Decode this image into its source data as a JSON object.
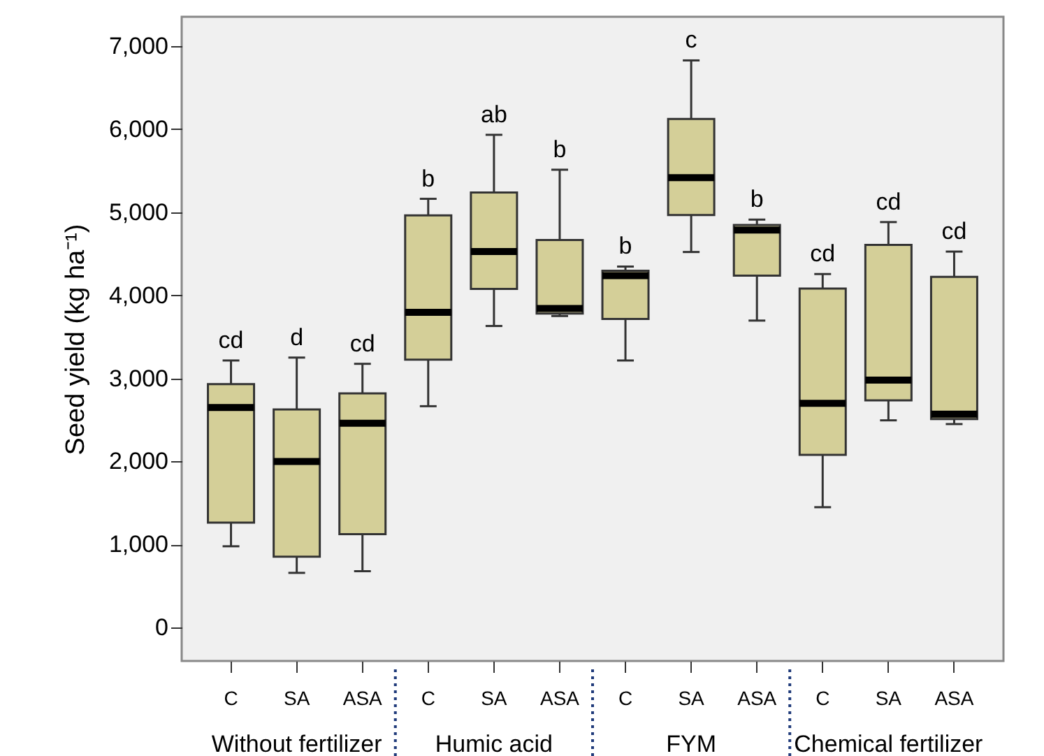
{
  "chart_data": {
    "type": "box",
    "ylabel": "Seed yield (kg ha⁻¹)",
    "categories": [
      "C",
      "SA",
      "ASA",
      "C",
      "SA",
      "ASA",
      "C",
      "SA",
      "ASA",
      "C",
      "SA",
      "ASA"
    ],
    "annotations": [
      "Without fertilizer",
      "Humic acid",
      "FYM",
      "Chemical fertilizer"
    ],
    "series": [
      {
        "color": "#d4cf98",
        "boxes": [
          {
            "low": 980,
            "q1": 1265,
            "median": 2650,
            "q3": 2930,
            "high": 3215
          },
          {
            "low": 660,
            "q1": 855,
            "median": 2000,
            "q3": 2625,
            "high": 3250
          },
          {
            "low": 680,
            "q1": 1125,
            "median": 2460,
            "q3": 2820,
            "high": 3175
          },
          {
            "low": 2665,
            "q1": 3225,
            "median": 3795,
            "q3": 4960,
            "high": 5160
          },
          {
            "low": 3630,
            "q1": 4075,
            "median": 4525,
            "q3": 5235,
            "high": 5930
          },
          {
            "low": 3750,
            "q1": 3780,
            "median": 3840,
            "q3": 4665,
            "high": 5510
          },
          {
            "low": 3215,
            "q1": 3715,
            "median": 4235,
            "q3": 4295,
            "high": 4345
          },
          {
            "low": 4520,
            "q1": 4965,
            "median": 5415,
            "q3": 6120,
            "high": 6825
          },
          {
            "low": 3695,
            "q1": 4235,
            "median": 4785,
            "q3": 4845,
            "high": 4910
          },
          {
            "low": 1450,
            "q1": 2080,
            "median": 2700,
            "q3": 4080,
            "high": 4255
          },
          {
            "low": 2495,
            "q1": 2735,
            "median": 2980,
            "q3": 4605,
            "high": 4880
          },
          {
            "low": 2450,
            "q1": 2510,
            "median": 2570,
            "q3": 4220,
            "high": 4525
          }
        ]
      }
    ],
    "value_labels": [
      "cd",
      "d",
      "cd",
      "b",
      "ab",
      "b",
      "b",
      "c",
      "b",
      "cd",
      "cd",
      "cd"
    ],
    "ylim": [
      -400,
      7350
    ],
    "yticks": [
      {
        "value": 0,
        "label": "0"
      },
      {
        "value": 1000,
        "label": "1,000"
      },
      {
        "value": 2000,
        "label": "2,000"
      },
      {
        "value": 3000,
        "label": "3,000"
      },
      {
        "value": 4000,
        "label": "4,000"
      },
      {
        "value": 5000,
        "label": "5,000"
      },
      {
        "value": 6000,
        "label": "6,000"
      },
      {
        "value": 7000,
        "label": "7,000"
      }
    ],
    "grid": false
  }
}
